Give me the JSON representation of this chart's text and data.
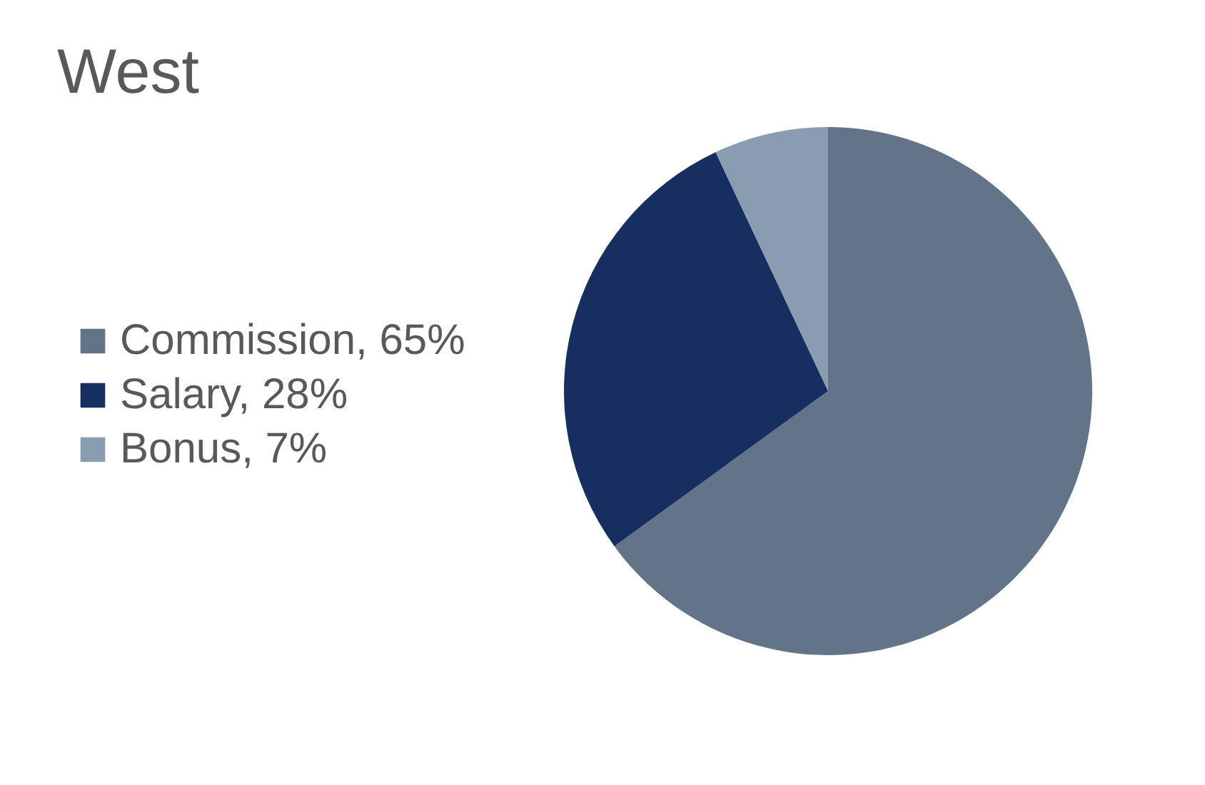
{
  "chart_data": {
    "type": "pie",
    "title": "West",
    "categories": [
      "Commission",
      "Salary",
      "Bonus"
    ],
    "values": [
      65,
      28,
      7
    ],
    "value_labels": [
      "65%",
      "28%",
      "7%"
    ],
    "colors": [
      "#637388",
      "#172f60",
      "#8a9db0"
    ],
    "legend": "left"
  }
}
